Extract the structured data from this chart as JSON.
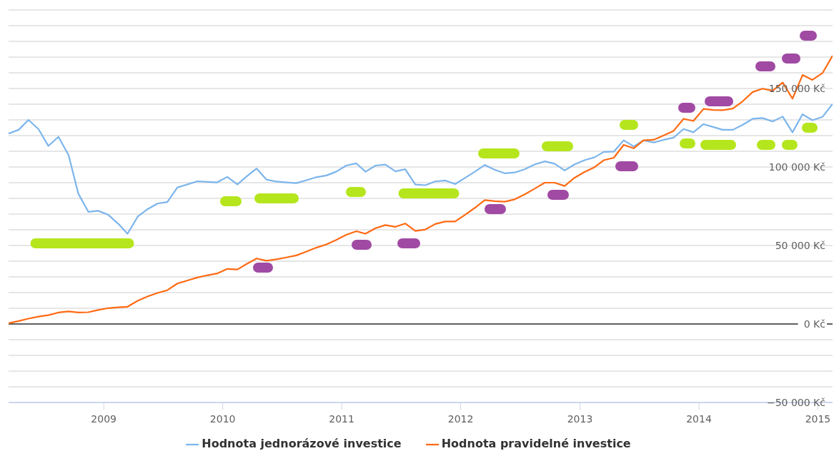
{
  "chart_data": {
    "type": "line",
    "x": [
      "2008-03-15",
      "2008-04-15",
      "2008-05-15",
      "2008-06-15",
      "2008-07-15",
      "2008-08-15",
      "2008-09-15",
      "2008-10-15",
      "2008-11-15",
      "2008-12-15",
      "2009-01-15",
      "2009-02-15",
      "2009-03-15",
      "2009-04-15",
      "2009-05-15",
      "2009-06-15",
      "2009-07-15",
      "2009-08-15",
      "2009-09-15",
      "2009-10-15",
      "2009-11-15",
      "2009-12-15",
      "2010-01-15",
      "2010-02-15",
      "2010-03-15",
      "2010-04-15",
      "2010-05-15",
      "2010-06-15",
      "2010-07-15",
      "2010-08-15",
      "2010-09-15",
      "2010-10-15",
      "2010-11-15",
      "2010-12-15",
      "2011-01-15",
      "2011-02-15",
      "2011-03-15",
      "2011-04-15",
      "2011-05-15",
      "2011-06-15",
      "2011-07-15",
      "2011-08-15",
      "2011-09-15",
      "2011-10-15",
      "2011-11-15",
      "2011-12-15",
      "2012-01-15",
      "2012-02-15",
      "2012-03-15",
      "2012-04-15",
      "2012-05-15",
      "2012-06-15",
      "2012-07-15",
      "2012-08-15",
      "2012-09-15",
      "2012-10-15",
      "2012-11-15",
      "2012-12-15",
      "2013-01-15",
      "2013-02-15",
      "2013-03-15",
      "2013-04-15",
      "2013-05-15",
      "2013-06-15",
      "2013-07-15",
      "2013-08-15",
      "2013-09-15",
      "2013-10-15",
      "2013-11-15",
      "2013-12-15",
      "2014-01-15",
      "2014-02-15",
      "2014-03-15",
      "2014-04-15",
      "2014-05-15",
      "2014-06-15",
      "2014-07-15",
      "2014-08-15",
      "2014-09-15",
      "2014-10-15",
      "2014-11-15",
      "2014-12-15",
      "2015-01-15",
      "2015-02-15"
    ],
    "series": [
      {
        "name": "Hodnota jednorázové investice",
        "color": "#7cb5ec",
        "values": [
          121300,
          123700,
          130000,
          124100,
          113400,
          119200,
          107600,
          83000,
          71400,
          72100,
          69500,
          63700,
          57500,
          68300,
          73100,
          76700,
          77700,
          87000,
          88900,
          90900,
          90500,
          90200,
          93700,
          88900,
          93900,
          99000,
          92000,
          90700,
          90200,
          89700,
          91600,
          93500,
          94600,
          97000,
          100900,
          102300,
          97000,
          100900,
          101500,
          97200,
          98600,
          88800,
          88400,
          90800,
          91400,
          89100,
          93100,
          97200,
          101300,
          98200,
          96000,
          96500,
          98500,
          101600,
          103600,
          102100,
          97800,
          101600,
          104300,
          106200,
          109600,
          109800,
          117000,
          113100,
          117000,
          115600,
          117300,
          118700,
          124200,
          122100,
          127300,
          125400,
          123700,
          123700,
          126800,
          130700,
          131200,
          129000,
          132100,
          122100,
          133600,
          129800,
          131900,
          140100
        ]
      },
      {
        "name": "Hodnota pravidelné investice",
        "color": "#ff6a13",
        "values": [
          500,
          1900,
          3400,
          4700,
          5600,
          7300,
          8000,
          7300,
          7500,
          8900,
          10100,
          10600,
          11000,
          14800,
          17500,
          19800,
          21500,
          25800,
          27700,
          29600,
          31000,
          32200,
          35100,
          34700,
          38200,
          41700,
          40300,
          41200,
          42400,
          43700,
          46100,
          48600,
          50700,
          53500,
          56800,
          59100,
          57500,
          61000,
          63000,
          61900,
          64000,
          59300,
          60200,
          63700,
          65300,
          65300,
          69600,
          74200,
          78900,
          78200,
          77900,
          79400,
          82500,
          86200,
          90000,
          90000,
          87900,
          93100,
          96800,
          99900,
          104300,
          105900,
          114100,
          111900,
          117000,
          117300,
          120100,
          123000,
          130700,
          129300,
          137000,
          136300,
          136200,
          137200,
          141800,
          147800,
          149900,
          148600,
          153800,
          143500,
          158600,
          155500,
          159800,
          170900
        ]
      }
    ],
    "xlim": [
      "2008-03-15",
      "2015-02-15"
    ],
    "xticks": [
      "2009",
      "2010",
      "2011",
      "2012",
      "2013",
      "2014",
      "2015"
    ],
    "ylim": [
      -50000,
      200000
    ],
    "yticks": [
      {
        "value": -50000,
        "label": "−50 000 Kč"
      },
      {
        "value": -40000,
        "label": null
      },
      {
        "value": -30000,
        "label": null
      },
      {
        "value": -20000,
        "label": null
      },
      {
        "value": -10000,
        "label": null
      },
      {
        "value": 0,
        "label": "0 Kč"
      },
      {
        "value": 10000,
        "label": null
      },
      {
        "value": 20000,
        "label": null
      },
      {
        "value": 30000,
        "label": null
      },
      {
        "value": 40000,
        "label": null
      },
      {
        "value": 50000,
        "label": "50 000 Kč"
      },
      {
        "value": 60000,
        "label": null
      },
      {
        "value": 70000,
        "label": null
      },
      {
        "value": 80000,
        "label": null
      },
      {
        "value": 90000,
        "label": null
      },
      {
        "value": 100000,
        "label": "100 000 Kč"
      },
      {
        "value": 110000,
        "label": null
      },
      {
        "value": 120000,
        "label": null
      },
      {
        "value": 130000,
        "label": null
      },
      {
        "value": 140000,
        "label": null
      },
      {
        "value": 150000,
        "label": "150 000 Kč"
      },
      {
        "value": 160000,
        "label": null
      },
      {
        "value": 170000,
        "label": null
      },
      {
        "value": 180000,
        "label": null
      },
      {
        "value": 190000,
        "label": null
      },
      {
        "value": 200000,
        "label": null
      }
    ],
    "ref_lines": [
      {
        "axis": "y",
        "value": 0,
        "color": "#606060"
      }
    ],
    "grid": "y",
    "legend": "bottom"
  }
}
